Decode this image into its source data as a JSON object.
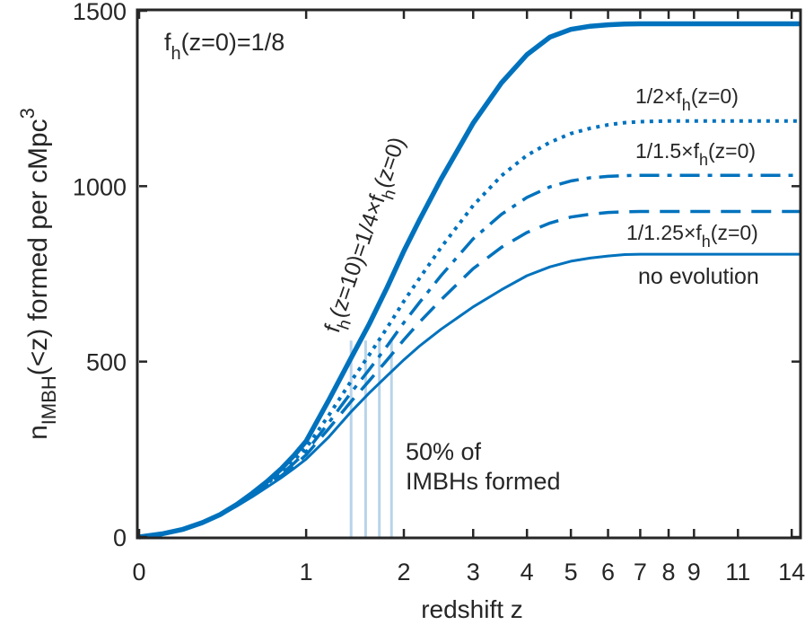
{
  "chart_data": {
    "type": "line",
    "title": "",
    "xlabel": "redshift z",
    "ylabel": {
      "main": "n",
      "sub": "IMBH",
      "rest": "(<z) formed per cMpc",
      "sup": "3"
    },
    "xscale": "log(1+z)",
    "xlim": [
      0,
      14.5
    ],
    "ylim": [
      0,
      1500
    ],
    "x_ticks": [
      0,
      1,
      2,
      3,
      4,
      5,
      6,
      7,
      8,
      9,
      11,
      14
    ],
    "x_tick_labels": [
      "0",
      "1",
      "2",
      "3",
      "4",
      "5",
      "6",
      "7",
      "8",
      "9",
      "11",
      "14"
    ],
    "y_ticks": [
      0,
      500,
      1000,
      1500
    ],
    "y_tick_labels": [
      "0",
      "500",
      "1000",
      "1500"
    ],
    "color": "#0072BD",
    "half_line_color": "#b8d4ea",
    "series": [
      {
        "name": "no evolution",
        "style": "solid",
        "width": 3,
        "x": [
          0,
          0.1,
          0.2,
          0.3,
          0.4,
          0.5,
          0.6,
          0.7,
          0.8,
          0.9,
          1.0,
          1.2,
          1.4,
          1.6,
          1.8,
          2.0,
          2.2,
          2.5,
          3.0,
          3.5,
          4.0,
          4.5,
          5.0,
          5.5,
          6.0,
          6.5,
          7.0,
          8.0,
          9.0,
          11.0,
          14.5
        ],
        "values": [
          0,
          9,
          22,
          40,
          62,
          88,
          115,
          142,
          168,
          195,
          222,
          286,
          354,
          411,
          460,
          505,
          544,
          592,
          656,
          705,
          745,
          770,
          786,
          795,
          801,
          805,
          806,
          806,
          806,
          806,
          806
        ]
      },
      {
        "name": "1/1.25×fh(z=0)",
        "style": "dashed",
        "width": 3.5,
        "x": [
          0,
          0.1,
          0.2,
          0.3,
          0.4,
          0.5,
          0.6,
          0.7,
          0.8,
          0.9,
          1.0,
          1.2,
          1.4,
          1.6,
          1.8,
          2.0,
          2.2,
          2.5,
          3.0,
          3.5,
          4.0,
          4.5,
          5.0,
          5.5,
          6.0,
          6.5,
          7.0,
          8.0,
          9.0,
          11.0,
          14.5
        ],
        "values": [
          0,
          9,
          22,
          40,
          62,
          89,
          117,
          145,
          173,
          203,
          234,
          310,
          383,
          446,
          505,
          562,
          612,
          676,
          765,
          826,
          868,
          895,
          912,
          920,
          925,
          927,
          928,
          928,
          928,
          928,
          928
        ]
      },
      {
        "name": "1/1.5×fh(z=0)",
        "style": "dashdot",
        "width": 3.5,
        "x": [
          0,
          0.1,
          0.2,
          0.3,
          0.4,
          0.5,
          0.6,
          0.7,
          0.8,
          0.9,
          1.0,
          1.2,
          1.4,
          1.6,
          1.8,
          2.0,
          2.2,
          2.5,
          3.0,
          3.5,
          4.0,
          4.5,
          5.0,
          5.5,
          6.0,
          6.5,
          7.0,
          8.0,
          9.0,
          11.0,
          14.5
        ],
        "values": [
          0,
          9,
          22,
          40,
          62,
          90,
          119,
          148,
          178,
          210,
          243,
          327,
          408,
          478,
          545,
          611,
          668,
          745,
          850,
          920,
          968,
          998,
          1015,
          1024,
          1028,
          1030,
          1031,
          1031,
          1031,
          1031,
          1031
        ]
      },
      {
        "name": "1/2×fh(z=0)",
        "style": "dotted",
        "width": 4,
        "x": [
          0,
          0.1,
          0.2,
          0.3,
          0.4,
          0.5,
          0.6,
          0.7,
          0.8,
          0.9,
          1.0,
          1.2,
          1.4,
          1.6,
          1.8,
          2.0,
          2.2,
          2.5,
          3.0,
          3.5,
          4.0,
          4.5,
          5.0,
          5.5,
          6.0,
          6.5,
          7.0,
          8.0,
          9.0,
          11.0,
          14.5
        ],
        "values": [
          0,
          9,
          22,
          40,
          63,
          91,
          121,
          152,
          184,
          218,
          254,
          348,
          440,
          520,
          597,
          672,
          737,
          825,
          945,
          1030,
          1088,
          1125,
          1150,
          1165,
          1175,
          1181,
          1184,
          1186,
          1186,
          1186,
          1186
        ]
      },
      {
        "name": "fh(z=10)=1/4×fh(z=0)",
        "style": "solid",
        "width": 5.5,
        "x": [
          0,
          0.1,
          0.2,
          0.3,
          0.4,
          0.5,
          0.6,
          0.7,
          0.8,
          0.9,
          1.0,
          1.2,
          1.4,
          1.6,
          1.8,
          2.0,
          2.2,
          2.5,
          3.0,
          3.5,
          4.0,
          4.5,
          5.0,
          5.5,
          6.0,
          6.5,
          7.0,
          8.0,
          9.0,
          11.0,
          14.5
        ],
        "values": [
          0,
          9,
          22,
          41,
          64,
          93,
          125,
          158,
          193,
          232,
          273,
          392,
          505,
          608,
          712,
          815,
          903,
          1020,
          1180,
          1295,
          1375,
          1425,
          1447,
          1456,
          1460,
          1462,
          1463,
          1463,
          1463,
          1463,
          1463
        ]
      }
    ],
    "half_lines": [
      {
        "x": 1.41,
        "y": 560
      },
      {
        "x": 1.56,
        "y": 560
      },
      {
        "x": 1.71,
        "y": 560
      },
      {
        "x": 1.85,
        "y": 560
      }
    ],
    "annotations": {
      "fh0": {
        "main": "f",
        "sub": "h",
        "rest": "(z=0)=1/8"
      },
      "rotated": {
        "main": "f",
        "sub": "h",
        "mid": "(z=10)=1/4×f",
        "sub2": "h",
        "rest": "(z=0)"
      },
      "half": {
        "main": "1/2×f",
        "sub": "h",
        "rest": "(z=0)"
      },
      "onefive": {
        "main": "1/1.5×f",
        "sub": "h",
        "rest": "(z=0)"
      },
      "onetwofive": {
        "main": "1/1.25×f",
        "sub": "h",
        "rest": "(z=0)"
      },
      "noevo": "no evolution",
      "fifty1": "50% of",
      "fifty2": "IMBHs formed"
    }
  }
}
